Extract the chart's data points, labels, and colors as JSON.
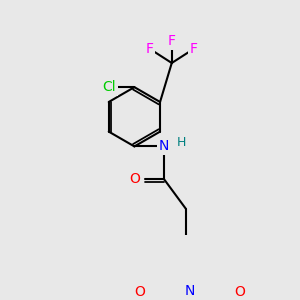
{
  "bg_color": "#e8e8e8",
  "bond_color": "#000000",
  "atom_colors": {
    "F": "#ff00ff",
    "Cl": "#00cc00",
    "N_amide": "#0000ff",
    "N_pyrr": "#0000ff",
    "O": "#ff0000",
    "H": "#008080",
    "C": "#000000"
  },
  "bond_width": 1.5,
  "font_size": 10
}
